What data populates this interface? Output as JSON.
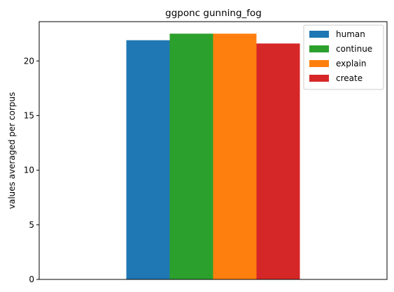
{
  "chart_data": {
    "type": "bar",
    "title": "ggponc gunning_fog",
    "xlabel": "",
    "ylabel": "values averaged per corpus",
    "categories": [
      ""
    ],
    "series": [
      {
        "name": "human",
        "values": [
          21.9
        ],
        "color": "#1f77b4"
      },
      {
        "name": "continue",
        "values": [
          22.5
        ],
        "color": "#2ca02c"
      },
      {
        "name": "explain",
        "values": [
          22.5
        ],
        "color": "#ff7f0e"
      },
      {
        "name": "create",
        "values": [
          21.6
        ],
        "color": "#d62728"
      }
    ],
    "ylim": [
      0,
      23.6
    ],
    "yticks": [
      0,
      5,
      10,
      15,
      20
    ],
    "grid": false,
    "legend_position": "top-right"
  }
}
